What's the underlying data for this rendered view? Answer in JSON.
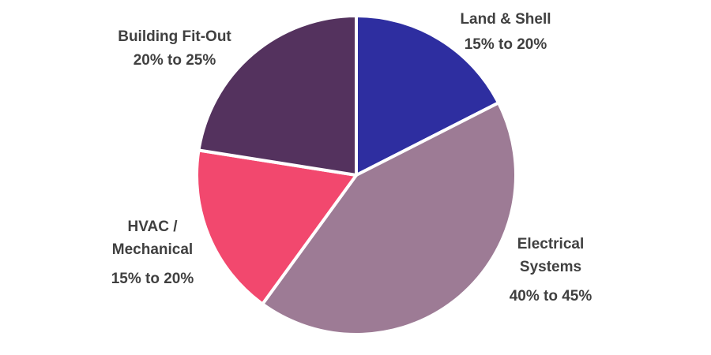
{
  "chart_data": {
    "type": "pie",
    "title": "",
    "start_angle_deg": 0,
    "direction": "clockwise",
    "slices": [
      {
        "label_lines": [
          "Land & Shell"
        ],
        "range": "15% to 20%",
        "value": 17.5,
        "color": "#2e2ea0"
      },
      {
        "label_lines": [
          "Electrical",
          "Systems"
        ],
        "range": "40% to 45%",
        "value": 42.5,
        "color": "#9d7b95"
      },
      {
        "label_lines": [
          "HVAC /",
          "Mechanical"
        ],
        "range": "15% to 20%",
        "value": 17.5,
        "color": "#f2486e"
      },
      {
        "label_lines": [
          "Building Fit-Out"
        ],
        "range": "20% to 25%",
        "value": 22.5,
        "color": "#54325e"
      }
    ]
  }
}
